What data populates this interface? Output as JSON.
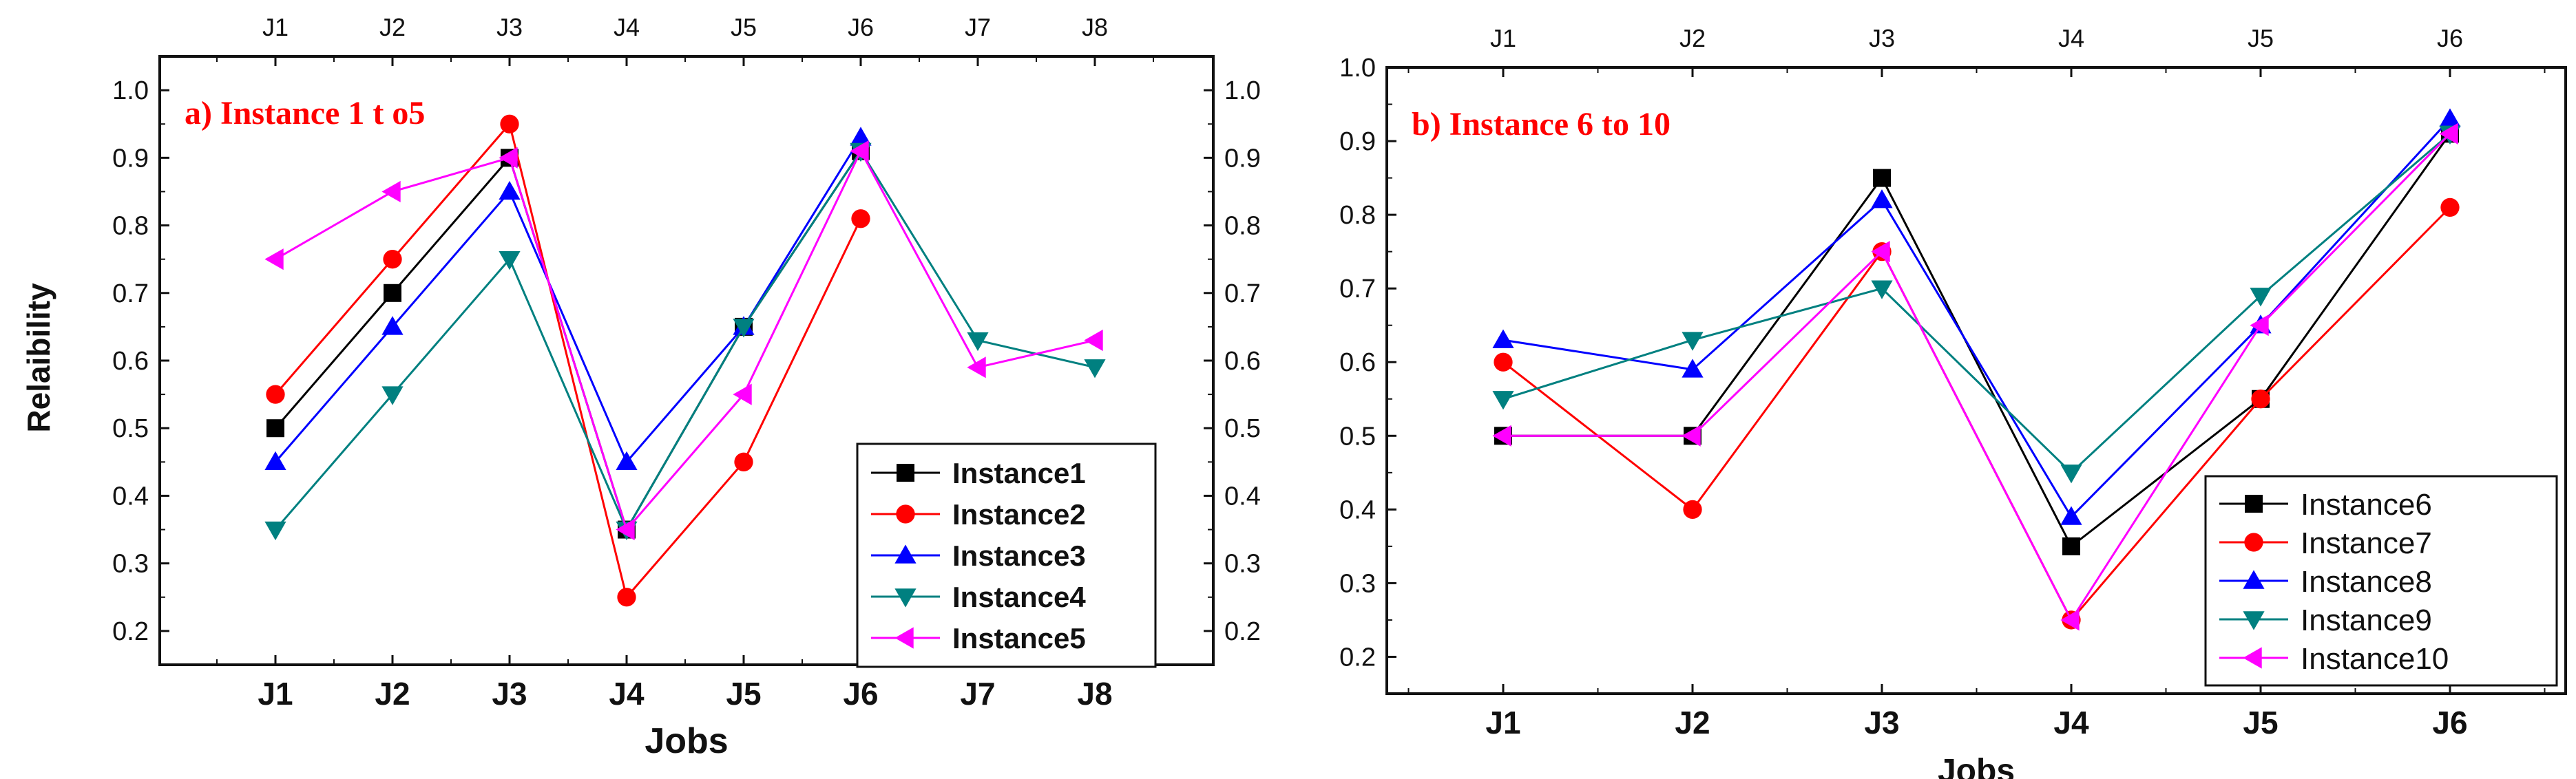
{
  "chart_data": [
    {
      "type": "line",
      "title": "a) Instance 1 t o5",
      "xlabel": "Jobs",
      "ylabel": "Relaibility",
      "categories": [
        "J1",
        "J2",
        "J3",
        "J4",
        "J5",
        "J6",
        "J7",
        "J8"
      ],
      "top_categories": [
        "J1",
        "J2",
        "J3",
        "J4",
        "J5",
        "J6",
        "J7",
        "J8"
      ],
      "ylim": [
        0.15,
        1.05
      ],
      "yticks": [
        "0.2",
        "0.3",
        "0.4",
        "0.5",
        "0.6",
        "0.7",
        "0.8",
        "0.9",
        "1.0"
      ],
      "legend_position": "bottom-right",
      "series": [
        {
          "name": "Instance1",
          "color": "#000000",
          "marker": "square",
          "values": [
            0.5,
            0.7,
            0.9,
            0.35,
            0.65,
            0.91,
            null,
            null
          ]
        },
        {
          "name": "Instance2",
          "color": "#ff0000",
          "marker": "circle",
          "values": [
            0.55,
            0.75,
            0.95,
            0.25,
            0.45,
            0.81,
            null,
            null
          ]
        },
        {
          "name": "Instance3",
          "color": "#0000ff",
          "marker": "triangle-up",
          "values": [
            0.45,
            0.65,
            0.85,
            0.45,
            0.65,
            0.93,
            null,
            null
          ]
        },
        {
          "name": "Instance4",
          "color": "#008080",
          "marker": "triangle-down",
          "values": [
            0.35,
            0.55,
            0.75,
            0.35,
            0.65,
            0.91,
            0.63,
            0.59
          ]
        },
        {
          "name": "Instance5",
          "color": "#ff00ff",
          "marker": "triangle-left",
          "values": [
            0.75,
            0.85,
            0.9,
            0.35,
            0.55,
            0.91,
            0.59,
            0.63
          ]
        }
      ]
    },
    {
      "type": "line",
      "title": "b) Instance 6 to 10",
      "xlabel": "Jobs",
      "ylabel": "",
      "categories": [
        "J1",
        "J2",
        "J3",
        "J4",
        "J5",
        "J6"
      ],
      "top_categories": [
        "J1",
        "J2",
        "J3",
        "J4",
        "J5",
        "J6"
      ],
      "ylim": [
        0.15,
        1.0
      ],
      "yticks": [
        "0.2",
        "0.3",
        "0.4",
        "0.5",
        "0.6",
        "0.7",
        "0.8",
        "0.9",
        "1.0"
      ],
      "legend_position": "bottom-right",
      "series": [
        {
          "name": "Instance6",
          "color": "#000000",
          "marker": "square",
          "values": [
            0.5,
            0.5,
            0.85,
            0.35,
            0.55,
            0.91
          ]
        },
        {
          "name": "Instance7",
          "color": "#ff0000",
          "marker": "circle",
          "values": [
            0.6,
            0.4,
            0.75,
            0.25,
            0.55,
            0.81
          ]
        },
        {
          "name": "Instance8",
          "color": "#0000ff",
          "marker": "triangle-up",
          "values": [
            0.63,
            0.59,
            0.82,
            0.39,
            0.65,
            0.93
          ]
        },
        {
          "name": "Instance9",
          "color": "#008080",
          "marker": "triangle-down",
          "values": [
            0.55,
            0.63,
            0.7,
            0.45,
            0.69,
            0.91
          ]
        },
        {
          "name": "Instance10",
          "color": "#ff00ff",
          "marker": "triangle-left",
          "values": [
            0.5,
            0.5,
            0.75,
            0.25,
            0.65,
            0.91
          ]
        }
      ]
    }
  ]
}
